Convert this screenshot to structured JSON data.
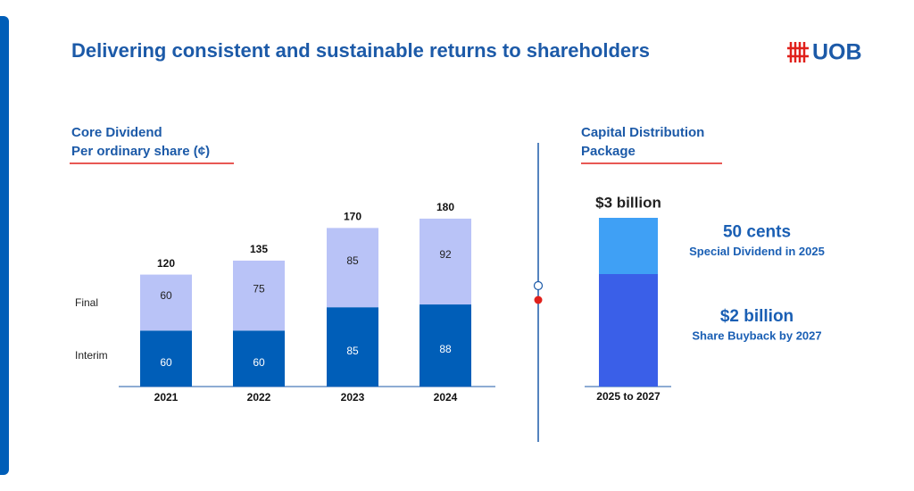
{
  "title": "Delivering consistent and sustainable returns to shareholders",
  "logo": "UOB",
  "chart_data": [
    {
      "type": "stacked-bar",
      "title": "Core Dividend",
      "subtitle": "Per ordinary share (¢)",
      "categories": [
        "2021",
        "2022",
        "2023",
        "2024"
      ],
      "series": [
        {
          "name": "Interim",
          "color": "#005eb8",
          "values": [
            60,
            60,
            85,
            88
          ]
        },
        {
          "name": "Final",
          "color": "#b9c3f7",
          "values": [
            60,
            75,
            85,
            92
          ]
        }
      ],
      "totals": [
        120,
        135,
        170,
        180
      ]
    },
    {
      "type": "stacked-bar",
      "title": "Capital Distribution",
      "subtitle": "Package",
      "categories": [
        "2025 to 2027"
      ],
      "total_label": "$3 billion",
      "series": [
        {
          "name": "Share Buyback by 2027",
          "annotation": "$2 billion",
          "color": "#3a5fe8",
          "values": [
            2
          ]
        },
        {
          "name": "Special Dividend in 2025",
          "annotation": "50 cents",
          "color": "#3fa0f5",
          "values": [
            1
          ]
        }
      ]
    }
  ]
}
